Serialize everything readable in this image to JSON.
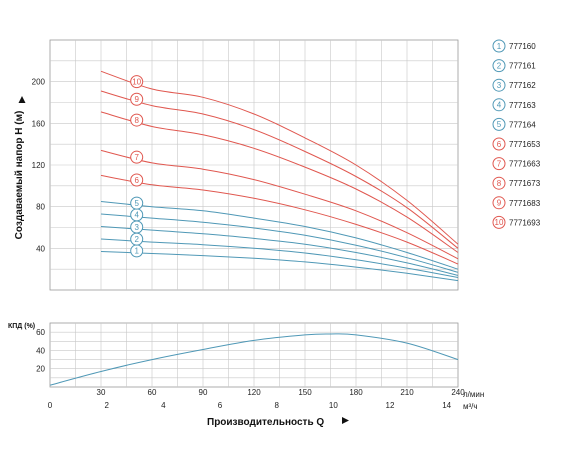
{
  "chart_data": [
    {
      "type": "line",
      "ylabel": "Создаваемый напор H (м)",
      "ylim": [
        0,
        240
      ],
      "yticks": [
        "40",
        "80",
        "120",
        "160",
        "200"
      ],
      "xlim": [
        0,
        240
      ],
      "grid": true,
      "legend_position": "right",
      "colors": {
        "blue": "#4f98b6",
        "red": "#e0574f"
      },
      "series": [
        {
          "name": "777160",
          "label": "1",
          "color": "blue",
          "x": [
            30,
            60,
            90,
            120,
            150,
            180,
            210,
            240
          ],
          "y": [
            37,
            35,
            33,
            30.5,
            27,
            22,
            16,
            9
          ]
        },
        {
          "name": "777161",
          "label": "2",
          "color": "blue",
          "x": [
            30,
            60,
            90,
            120,
            150,
            180,
            210,
            240
          ],
          "y": [
            49,
            46,
            43.5,
            40,
            35.5,
            29,
            21,
            12
          ]
        },
        {
          "name": "777162",
          "label": "3",
          "color": "blue",
          "x": [
            30,
            60,
            90,
            120,
            150,
            180,
            210,
            240
          ],
          "y": [
            61,
            57.5,
            54,
            49.5,
            44,
            36,
            26,
            14
          ]
        },
        {
          "name": "777163",
          "label": "4",
          "color": "blue",
          "x": [
            30,
            60,
            90,
            120,
            150,
            180,
            210,
            240
          ],
          "y": [
            73,
            69,
            65,
            59.5,
            52.5,
            43,
            31,
            17
          ]
        },
        {
          "name": "777164",
          "label": "5",
          "color": "blue",
          "x": [
            30,
            60,
            90,
            120,
            150,
            180,
            210,
            240
          ],
          "y": [
            85,
            80,
            76,
            69,
            61,
            50,
            36,
            20
          ]
        },
        {
          "name": "7771653",
          "label": "6",
          "color": "red",
          "x": [
            30,
            60,
            90,
            120,
            150,
            180,
            210,
            240
          ],
          "y": [
            110,
            101,
            96,
            88,
            77,
            63,
            46,
            25
          ]
        },
        {
          "name": "7771663",
          "label": "7",
          "color": "red",
          "x": [
            30,
            60,
            90,
            120,
            150,
            180,
            210,
            240
          ],
          "y": [
            134,
            122,
            116,
            106,
            92,
            76,
            55,
            30
          ]
        },
        {
          "name": "7771673",
          "label": "8",
          "color": "red",
          "x": [
            30,
            60,
            90,
            120,
            150,
            180,
            210,
            240
          ],
          "y": [
            171,
            157,
            149,
            136,
            118,
            97,
            70,
            36
          ]
        },
        {
          "name": "7771683",
          "label": "9",
          "color": "red",
          "x": [
            30,
            60,
            90,
            120,
            150,
            180,
            210,
            240
          ],
          "y": [
            191,
            177,
            169,
            154,
            133,
            109,
            79,
            40
          ]
        },
        {
          "name": "7771693",
          "label": "10",
          "color": "red",
          "x": [
            30,
            60,
            90,
            120,
            150,
            180,
            210,
            240
          ],
          "y": [
            210,
            193,
            185,
            169,
            146,
            120,
            86,
            44
          ]
        }
      ]
    },
    {
      "type": "line",
      "ylabel": "КПД (%)",
      "ylim": [
        0,
        70
      ],
      "yticks": [
        "20",
        "40",
        "60"
      ],
      "xlabel": "Производительность Q",
      "xlim": [
        0,
        240
      ],
      "x_ticks_lpm": [
        "30",
        "60",
        "90",
        "120",
        "150",
        "180",
        "210",
        "240"
      ],
      "x_unit_lpm": "л/мин",
      "x_ticks_m3h": [
        "0",
        "2",
        "4",
        "6",
        "8",
        "10",
        "12",
        "14"
      ],
      "x_unit_m3h": "м³/ч",
      "grid": true,
      "series": [
        {
          "color": "blue",
          "x": [
            0,
            30,
            60,
            90,
            120,
            150,
            165,
            180,
            210,
            240
          ],
          "y": [
            2,
            17,
            30,
            41,
            51,
            57,
            58,
            57,
            48,
            30
          ]
        }
      ]
    }
  ]
}
